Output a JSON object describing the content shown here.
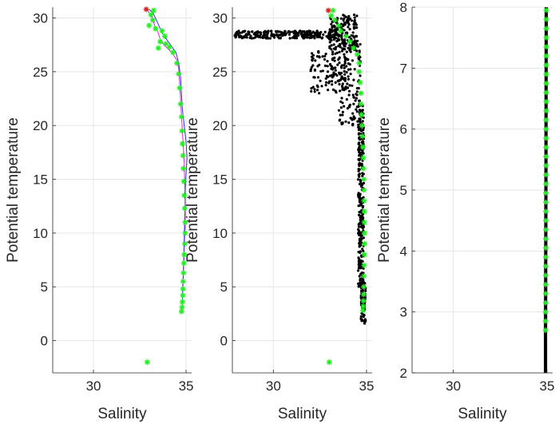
{
  "chart_data": [
    {
      "type": "scatter",
      "xlabel": "Salinity",
      "ylabel": "Potential temperature",
      "xlim": [
        27.8,
        35.3
      ],
      "ylim": [
        -3,
        31
      ],
      "xticks": [
        30,
        35
      ],
      "yticks": [
        0,
        5,
        10,
        15,
        20,
        25,
        30
      ],
      "grid": true,
      "series": [
        {
          "kind": "line",
          "color": "#cc33cc",
          "points": [
            [
              32.9,
              30.8
            ],
            [
              33.0,
              30.5
            ],
            [
              33.2,
              30.0
            ],
            [
              33.3,
              29.3
            ],
            [
              33.5,
              28.6
            ],
            [
              33.6,
              28.0
            ],
            [
              33.8,
              27.5
            ],
            [
              34.1,
              27.0
            ],
            [
              34.3,
              26.6
            ],
            [
              34.5,
              26.1
            ],
            [
              34.6,
              25.3
            ],
            [
              34.65,
              24.0
            ],
            [
              34.7,
              22.5
            ],
            [
              34.75,
              21.0
            ],
            [
              34.8,
              19.5
            ],
            [
              34.85,
              18.0
            ],
            [
              34.9,
              16.5
            ],
            [
              34.92,
              15.0
            ],
            [
              34.95,
              13.5
            ],
            [
              34.95,
              12.0
            ],
            [
              34.95,
              10.5
            ],
            [
              34.9,
              9.0
            ],
            [
              34.88,
              7.5
            ],
            [
              34.85,
              6.0
            ],
            [
              34.82,
              4.5
            ],
            [
              34.8,
              3.5
            ],
            [
              34.75,
              2.7
            ]
          ]
        },
        {
          "kind": "line",
          "color": "#3333dd",
          "points": [
            [
              33.0,
              30.8
            ],
            [
              33.2,
              30.5
            ],
            [
              33.4,
              29.8
            ],
            [
              33.6,
              29.0
            ],
            [
              33.75,
              28.5
            ],
            [
              33.95,
              28.0
            ],
            [
              34.2,
              27.4
            ],
            [
              34.45,
              26.8
            ],
            [
              34.6,
              25.8
            ],
            [
              34.7,
              24.5
            ],
            [
              34.75,
              23.0
            ],
            [
              34.8,
              21.5
            ],
            [
              34.9,
              20.0
            ],
            [
              35.0,
              18.5
            ],
            [
              35.05,
              17.0
            ],
            [
              35.0,
              15.5
            ],
            [
              34.95,
              14.0
            ],
            [
              34.95,
              12.5
            ],
            [
              34.92,
              11.0
            ],
            [
              34.9,
              9.5
            ],
            [
              34.88,
              8.0
            ],
            [
              34.85,
              6.5
            ],
            [
              34.82,
              5.0
            ],
            [
              34.8,
              3.8
            ],
            [
              34.78,
              2.8
            ]
          ]
        },
        {
          "kind": "marker",
          "marker": "asterisk",
          "color": "#22ee22",
          "points": [
            [
              33.25,
              30.7
            ],
            [
              33.1,
              30.3
            ],
            [
              33.2,
              29.8
            ],
            [
              33.0,
              29.3
            ],
            [
              33.35,
              29.0
            ],
            [
              33.7,
              28.8
            ],
            [
              33.85,
              28.3
            ],
            [
              33.6,
              27.8
            ],
            [
              33.9,
              27.6
            ],
            [
              34.1,
              27.3
            ],
            [
              34.3,
              26.8
            ],
            [
              33.5,
              27.2
            ],
            [
              34.5,
              25.8
            ],
            [
              34.6,
              24.8
            ],
            [
              34.65,
              23.5
            ],
            [
              34.7,
              22.0
            ],
            [
              34.75,
              20.8
            ],
            [
              34.78,
              19.5
            ],
            [
              34.8,
              18.3
            ],
            [
              34.83,
              17.2
            ],
            [
              34.85,
              16.0
            ],
            [
              34.88,
              14.8
            ],
            [
              34.9,
              13.5
            ],
            [
              34.92,
              12.3
            ],
            [
              34.95,
              11.0
            ],
            [
              34.95,
              10.0
            ],
            [
              34.93,
              9.0
            ],
            [
              34.9,
              8.0
            ],
            [
              34.88,
              7.2
            ],
            [
              34.86,
              6.3
            ],
            [
              34.84,
              5.5
            ],
            [
              34.83,
              4.8
            ],
            [
              34.82,
              4.2
            ],
            [
              34.8,
              3.6
            ],
            [
              34.78,
              3.1
            ],
            [
              34.75,
              2.7
            ],
            [
              32.9,
              -2.0
            ]
          ]
        },
        {
          "kind": "marker",
          "marker": "asterisk",
          "color": "#dd2222",
          "points": [
            [
              32.85,
              30.8
            ]
          ]
        }
      ]
    },
    {
      "type": "scatter",
      "xlabel": "Salinity",
      "ylabel": "Potential temperature",
      "xlim": [
        27.8,
        35.3
      ],
      "ylim": [
        -3,
        31
      ],
      "xticks": [
        30,
        35
      ],
      "yticks": [
        0,
        5,
        10,
        15,
        20,
        25,
        30
      ],
      "grid": true,
      "series": [
        {
          "kind": "dots",
          "color": "#000000",
          "clusters": [
            {
              "x": [
                27.9,
                33.5
              ],
              "y": [
                28.1,
                28.8
              ],
              "n": 260
            },
            {
              "x": [
                33.0,
                34.5
              ],
              "y": [
                27.0,
                30.3
              ],
              "n": 160
            },
            {
              "x": [
                32.0,
                34.0
              ],
              "y": [
                23.0,
                27.0
              ],
              "n": 110
            },
            {
              "x": [
                33.5,
                34.7
              ],
              "y": [
                20.0,
                28.0
              ],
              "n": 130
            },
            {
              "x": [
                34.55,
                34.85
              ],
              "y": [
                5.0,
                22.0
              ],
              "n": 300
            },
            {
              "x": [
                34.7,
                34.95
              ],
              "y": [
                1.5,
                5.5
              ],
              "n": 80
            }
          ]
        },
        {
          "kind": "marker",
          "marker": "asterisk",
          "color": "#22ee22",
          "points": [
            [
              33.2,
              30.7
            ],
            [
              33.1,
              30.2
            ],
            [
              33.3,
              29.8
            ],
            [
              33.5,
              29.3
            ],
            [
              33.6,
              28.8
            ],
            [
              33.9,
              28.3
            ],
            [
              34.1,
              27.8
            ],
            [
              34.3,
              27.2
            ],
            [
              34.5,
              26.6
            ],
            [
              34.6,
              25.8
            ],
            [
              34.6,
              25.0
            ],
            [
              34.65,
              24.0
            ],
            [
              34.7,
              23.0
            ],
            [
              34.7,
              22.0
            ],
            [
              34.73,
              21.0
            ],
            [
              34.75,
              20.0
            ],
            [
              34.78,
              19.0
            ],
            [
              34.8,
              18.0
            ],
            [
              34.82,
              17.0
            ],
            [
              34.83,
              16.0
            ],
            [
              34.85,
              15.0
            ],
            [
              34.86,
              14.0
            ],
            [
              34.87,
              13.0
            ],
            [
              34.88,
              12.0
            ],
            [
              34.88,
              11.0
            ],
            [
              34.89,
              10.0
            ],
            [
              34.89,
              9.0
            ],
            [
              34.88,
              8.0
            ],
            [
              34.87,
              7.0
            ],
            [
              34.86,
              6.0
            ],
            [
              34.85,
              5.0
            ],
            [
              34.84,
              4.3
            ],
            [
              34.83,
              3.7
            ],
            [
              34.82,
              3.2
            ],
            [
              34.8,
              2.8
            ],
            [
              33.0,
              -2.0
            ]
          ]
        },
        {
          "kind": "marker",
          "marker": "asterisk",
          "color": "#dd2222",
          "points": [
            [
              32.95,
              30.7
            ]
          ]
        }
      ]
    },
    {
      "type": "scatter",
      "xlabel": "Salinity",
      "ylabel": "Potential temperature",
      "xlim": [
        27.8,
        35.3
      ],
      "ylim": [
        2,
        8
      ],
      "xticks": [
        30,
        35
      ],
      "yticks": [
        2,
        3,
        4,
        5,
        6,
        7,
        8
      ],
      "grid": true,
      "series": [
        {
          "kind": "thickline",
          "color": "#000000",
          "points": [
            [
              34.92,
              2.0
            ],
            [
              34.92,
              2.6
            ],
            [
              34.93,
              3.5
            ],
            [
              34.94,
              5.0
            ],
            [
              34.95,
              6.5
            ],
            [
              34.96,
              8.0
            ]
          ]
        },
        {
          "kind": "marker",
          "marker": "asterisk",
          "color": "#22ee22",
          "points": [
            [
              34.92,
              2.7
            ],
            [
              34.92,
              2.85
            ],
            [
              34.92,
              3.0
            ],
            [
              34.93,
              3.15
            ],
            [
              34.93,
              3.3
            ],
            [
              34.93,
              3.45
            ],
            [
              34.93,
              3.6
            ],
            [
              34.93,
              3.75
            ],
            [
              34.93,
              3.9
            ],
            [
              34.94,
              4.05
            ],
            [
              34.94,
              4.2
            ],
            [
              34.94,
              4.35
            ],
            [
              34.94,
              4.5
            ],
            [
              34.94,
              4.65
            ],
            [
              34.94,
              4.8
            ],
            [
              34.94,
              4.95
            ],
            [
              34.95,
              5.1
            ],
            [
              34.95,
              5.25
            ],
            [
              34.95,
              5.4
            ],
            [
              34.95,
              5.55
            ],
            [
              34.95,
              5.7
            ],
            [
              34.95,
              5.85
            ],
            [
              34.95,
              6.0
            ],
            [
              34.95,
              6.15
            ],
            [
              34.96,
              6.3
            ],
            [
              34.96,
              6.45
            ],
            [
              34.96,
              6.6
            ],
            [
              34.96,
              6.75
            ],
            [
              34.96,
              6.9
            ],
            [
              34.96,
              7.05
            ],
            [
              34.96,
              7.2
            ],
            [
              34.96,
              7.35
            ],
            [
              34.96,
              7.5
            ],
            [
              34.96,
              7.65
            ],
            [
              34.96,
              7.8
            ],
            [
              34.96,
              7.95
            ]
          ]
        }
      ]
    }
  ]
}
